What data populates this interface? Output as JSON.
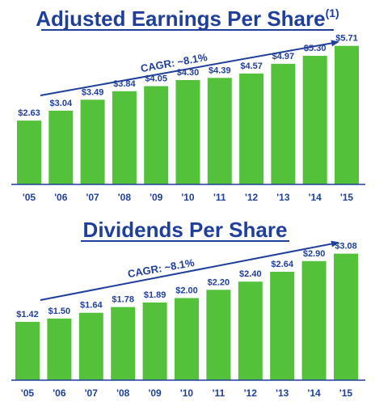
{
  "colors": {
    "bar": "#53c23a",
    "text": "#1f3f9a",
    "axis": "#1f3f9a"
  },
  "chart_data": [
    {
      "type": "bar",
      "title": "Adjusted Earnings Per Share",
      "title_superscript": "(1)",
      "annotation": "CAGR: ~8.1%",
      "categories": [
        "'05",
        "'06",
        "'07",
        "'08",
        "'09",
        "'10",
        "'11",
        "'12",
        "'13",
        "'14",
        "'15"
      ],
      "values": [
        2.63,
        3.04,
        3.49,
        3.84,
        4.05,
        4.3,
        4.39,
        4.57,
        4.97,
        5.3,
        5.71
      ],
      "value_labels": [
        "$2.63",
        "$3.04",
        "$3.49",
        "$3.84",
        "$4.05",
        "$4.30",
        "$4.39",
        "$4.57",
        "$4.97",
        "$5.30",
        "$5.71"
      ],
      "xlabel": "",
      "ylabel": "",
      "ylim": [
        0,
        6.0
      ],
      "grid": false
    },
    {
      "type": "bar",
      "title": "Dividends Per Share",
      "annotation": "CAGR: ~8.1%",
      "categories": [
        "'05",
        "'06",
        "'07",
        "'08",
        "'09",
        "'10",
        "'11",
        "'12",
        "'13",
        "'14",
        "'15"
      ],
      "values": [
        1.42,
        1.5,
        1.64,
        1.78,
        1.89,
        2.0,
        2.2,
        2.4,
        2.64,
        2.9,
        3.08
      ],
      "value_labels": [
        "$1.42",
        "$1.50",
        "$1.64",
        "$1.78",
        "$1.89",
        "$2.00",
        "$2.20",
        "$2.40",
        "$2.64",
        "$2.90",
        "$3.08"
      ],
      "xlabel": "",
      "ylabel": "",
      "ylim": [
        0,
        3.25
      ],
      "grid": false
    }
  ]
}
